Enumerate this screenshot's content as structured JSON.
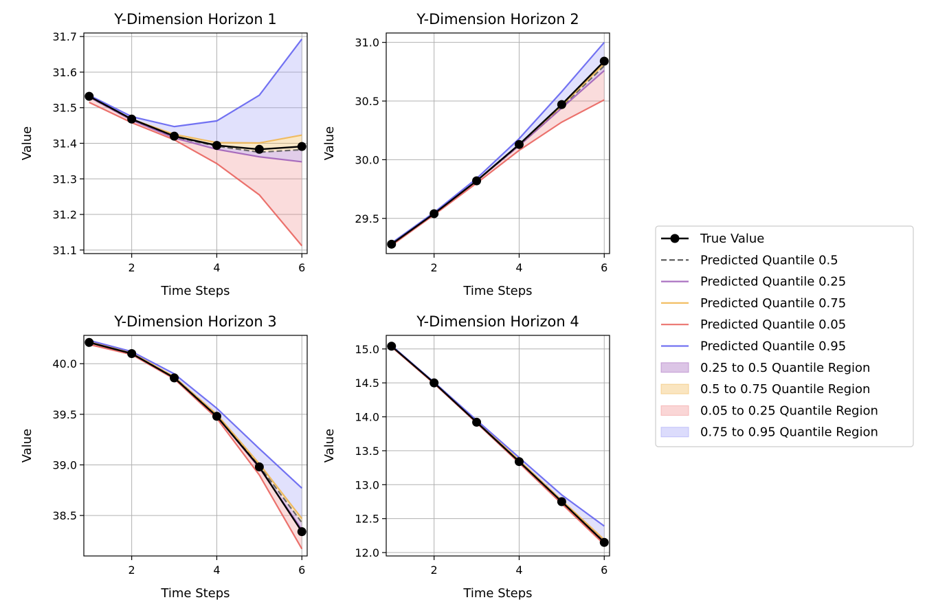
{
  "colors": {
    "true": "#000000",
    "q50": "#555555",
    "q25": "#9b59b6",
    "q75": "#f0b44a",
    "q05": "#e85a55",
    "q95": "#5b5bf0",
    "r25_50": "#9b59b6",
    "r50_75": "#f0b44a",
    "r05_25": "#f08a8a",
    "r75_95": "#9a9af5"
  },
  "legend": {
    "placement": "right",
    "items": [
      {
        "label": "True Value",
        "kind": "marker-line",
        "color_key": "true"
      },
      {
        "label": "Predicted Quantile 0.5",
        "kind": "dashed",
        "color_key": "q50"
      },
      {
        "label": "Predicted Quantile 0.25",
        "kind": "line",
        "color_key": "q25"
      },
      {
        "label": "Predicted Quantile 0.75",
        "kind": "line",
        "color_key": "q75"
      },
      {
        "label": "Predicted Quantile 0.05",
        "kind": "line",
        "color_key": "q05"
      },
      {
        "label": "Predicted Quantile 0.95",
        "kind": "line",
        "color_key": "q95"
      },
      {
        "label": "0.25 to 0.5 Quantile Region",
        "kind": "patch",
        "color_key": "r25_50"
      },
      {
        "label": "0.5 to 0.75 Quantile Region",
        "kind": "patch",
        "color_key": "r50_75"
      },
      {
        "label": "0.05 to 0.25 Quantile Region",
        "kind": "patch",
        "color_key": "r05_25"
      },
      {
        "label": "0.75 to 0.95 Quantile Region",
        "kind": "patch",
        "color_key": "r75_95"
      }
    ]
  },
  "chart_data": [
    {
      "type": "line",
      "title": "Y-Dimension Horizon 1",
      "xlabel": "Time Steps",
      "ylabel": "Value",
      "grid": true,
      "x": [
        1,
        2,
        3,
        4,
        5,
        6
      ],
      "xlim": [
        0.875,
        6.125
      ],
      "ylim": [
        31.09,
        31.71
      ],
      "xticks": [
        2,
        4,
        6
      ],
      "yticks": [
        31.1,
        31.2,
        31.3,
        31.4,
        31.5,
        31.6,
        31.7
      ],
      "ytick_decimals": 1,
      "series": {
        "true": [
          31.532,
          31.468,
          31.42,
          31.394,
          31.383,
          31.391
        ],
        "q50": [
          31.53,
          31.466,
          31.418,
          31.392,
          31.375,
          31.382
        ],
        "q25": [
          31.53,
          31.465,
          31.415,
          31.383,
          31.362,
          31.348
        ],
        "q75": [
          31.532,
          31.468,
          31.425,
          31.402,
          31.401,
          31.423
        ],
        "q05": [
          31.515,
          31.458,
          31.41,
          31.343,
          31.255,
          31.112
        ],
        "q95": [
          31.535,
          31.475,
          31.447,
          31.463,
          31.535,
          31.693
        ]
      }
    },
    {
      "type": "line",
      "title": "Y-Dimension Horizon 2",
      "xlabel": "Time Steps",
      "ylabel": "Value",
      "grid": true,
      "x": [
        1,
        2,
        3,
        4,
        5,
        6
      ],
      "xlim": [
        0.875,
        6.125
      ],
      "ylim": [
        29.2,
        31.08
      ],
      "xticks": [
        2,
        4,
        6
      ],
      "yticks": [
        29.5,
        30.0,
        30.5,
        31.0
      ],
      "ytick_decimals": 1,
      "series": {
        "true": [
          29.28,
          29.54,
          29.82,
          30.13,
          30.47,
          30.84
        ],
        "q50": [
          29.28,
          29.54,
          29.82,
          30.12,
          30.45,
          30.8
        ],
        "q25": [
          29.28,
          29.54,
          29.82,
          30.12,
          30.44,
          30.76
        ],
        "q75": [
          29.28,
          29.54,
          29.82,
          30.13,
          30.46,
          30.82
        ],
        "q05": [
          29.27,
          29.53,
          29.8,
          30.08,
          30.32,
          30.51
        ],
        "q95": [
          29.29,
          29.55,
          29.84,
          30.18,
          30.58,
          31.0
        ]
      }
    },
    {
      "type": "line",
      "title": "Y-Dimension Horizon 3",
      "xlabel": "Time Steps",
      "ylabel": "Value",
      "grid": true,
      "x": [
        1,
        2,
        3,
        4,
        5,
        6
      ],
      "xlim": [
        0.875,
        6.125
      ],
      "ylim": [
        38.1,
        40.28
      ],
      "xticks": [
        2,
        4,
        6
      ],
      "yticks": [
        38.5,
        39.0,
        39.5,
        40.0
      ],
      "ytick_decimals": 1,
      "series": {
        "true": [
          40.21,
          40.1,
          39.86,
          39.48,
          38.98,
          38.34
        ],
        "q50": [
          40.21,
          40.1,
          39.87,
          39.49,
          38.99,
          38.43
        ],
        "q25": [
          40.21,
          40.1,
          39.86,
          39.48,
          38.97,
          38.36
        ],
        "q75": [
          40.22,
          40.11,
          39.87,
          39.5,
          39.01,
          38.47
        ],
        "q05": [
          40.19,
          40.09,
          39.85,
          39.46,
          38.9,
          38.17
        ],
        "q95": [
          40.23,
          40.12,
          39.9,
          39.56,
          39.16,
          38.77
        ]
      }
    },
    {
      "type": "line",
      "title": "Y-Dimension Horizon 4",
      "xlabel": "Time Steps",
      "ylabel": "Value",
      "grid": true,
      "x": [
        1,
        2,
        3,
        4,
        5,
        6
      ],
      "xlim": [
        0.875,
        6.125
      ],
      "ylim": [
        11.95,
        15.2
      ],
      "xticks": [
        2,
        4,
        6
      ],
      "yticks": [
        12.0,
        12.5,
        13.0,
        13.5,
        14.0,
        14.5,
        15.0
      ],
      "ytick_decimals": 1,
      "series": {
        "true": [
          15.04,
          14.5,
          13.92,
          13.34,
          12.75,
          12.15
        ],
        "q50": [
          15.04,
          14.5,
          13.93,
          13.35,
          12.76,
          12.17
        ],
        "q25": [
          15.04,
          14.5,
          13.92,
          13.34,
          12.75,
          12.16
        ],
        "q75": [
          15.04,
          14.5,
          13.93,
          13.36,
          12.77,
          12.19
        ],
        "q05": [
          15.03,
          14.49,
          13.91,
          13.32,
          12.72,
          12.12
        ],
        "q95": [
          15.05,
          14.51,
          13.95,
          13.4,
          12.85,
          12.39
        ]
      }
    }
  ]
}
